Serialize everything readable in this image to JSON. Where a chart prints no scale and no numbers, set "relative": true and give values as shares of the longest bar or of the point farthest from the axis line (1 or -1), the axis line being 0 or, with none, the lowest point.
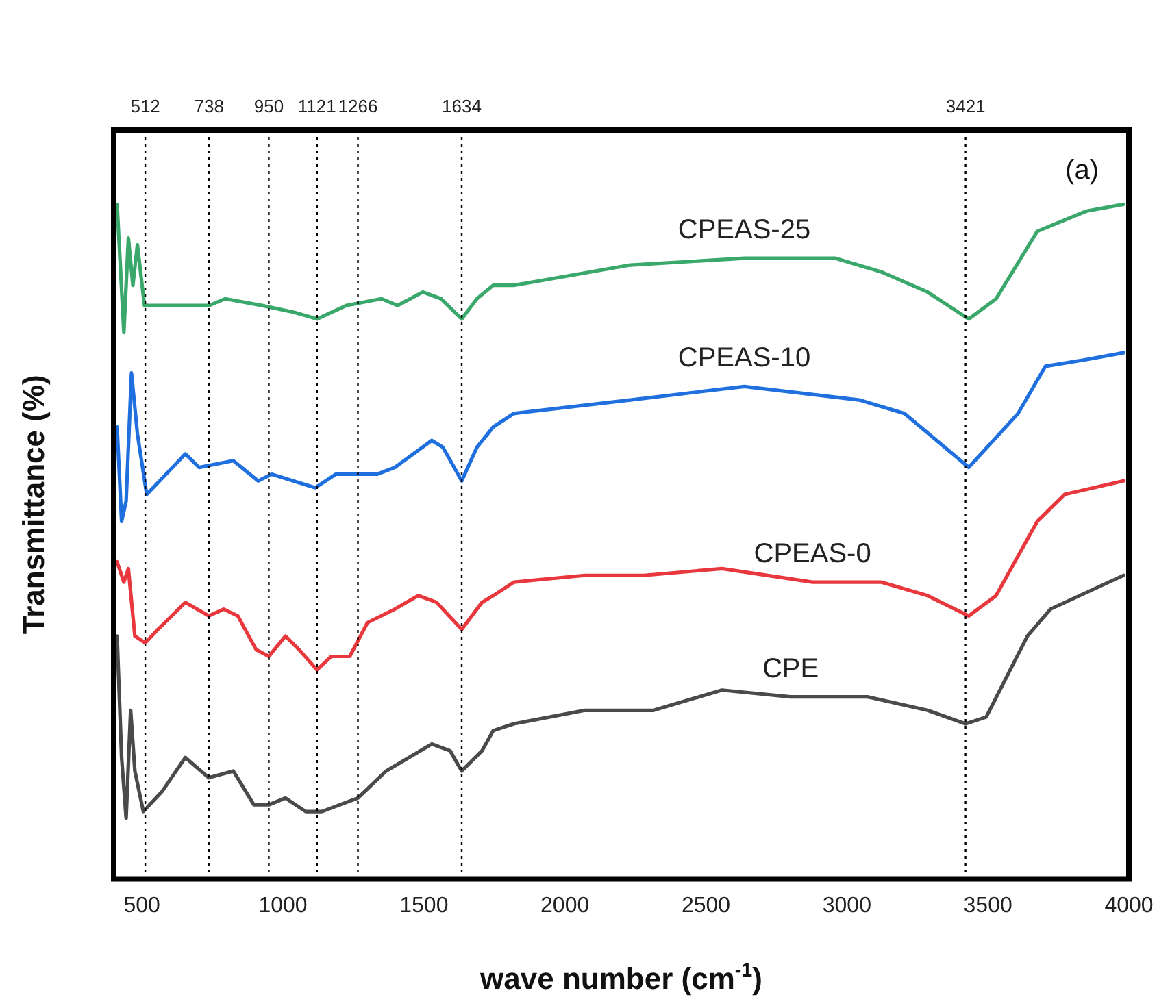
{
  "chart_data": {
    "type": "line",
    "relative": true,
    "xlabel": "wave number (cm$^{-1}$)",
    "ylabel": "Transmittance (%)",
    "xlim": [
      400,
      4000
    ],
    "xticks": [
      500,
      1000,
      1500,
      2000,
      2500,
      3000,
      3500,
      4000
    ],
    "grid": false,
    "legend": false,
    "marker": "none",
    "line_style": "solid",
    "annotations": [
      "(a)"
    ],
    "ref_lines": [
      {
        "axis": "x",
        "value": 512,
        "label": "512",
        "line_style": "dotted"
      },
      {
        "axis": "x",
        "value": 738,
        "label": "738",
        "line_style": "dotted"
      },
      {
        "axis": "x",
        "value": 950,
        "label": "950",
        "line_style": "dotted"
      },
      {
        "axis": "x",
        "value": 1121,
        "label": "1121",
        "line_style": "dotted"
      },
      {
        "axis": "x",
        "value": 1266,
        "label": "1266",
        "line_style": "dotted"
      },
      {
        "axis": "x",
        "value": 1634,
        "label": "1634",
        "line_style": "dotted"
      },
      {
        "axis": "x",
        "value": 3421,
        "label": "3421",
        "line_style": "dotted"
      }
    ],
    "series": [
      {
        "name": "CPEAS-25",
        "color": "#3aa86b",
        "x": [
          412,
          436,
          452,
          468,
          484,
          509,
          606,
          738,
          795,
          926,
          1039,
          1121,
          1225,
          1350,
          1407,
          1496,
          1561,
          1634,
          1688,
          1746,
          1819,
          2232,
          2636,
          2960,
          3121,
          3286,
          3432,
          3529,
          3675,
          3850,
          3981
        ],
        "values": [
          1.0,
          0.81,
          0.95,
          0.88,
          0.94,
          0.85,
          0.85,
          0.85,
          0.86,
          0.85,
          0.84,
          0.83,
          0.85,
          0.86,
          0.85,
          0.87,
          0.86,
          0.83,
          0.86,
          0.88,
          0.88,
          0.91,
          0.92,
          0.92,
          0.9,
          0.87,
          0.83,
          0.86,
          0.96,
          0.99,
          1.0
        ]
      },
      {
        "name": "CPEAS-10",
        "color": "#1f6fde",
        "x": [
          412,
          428,
          444,
          463,
          484,
          517,
          654,
          703,
          824,
          912,
          960,
          1115,
          1188,
          1334,
          1397,
          1528,
          1567,
          1634,
          1688,
          1746,
          1819,
          2232,
          2636,
          3044,
          3204,
          3432,
          3607,
          3704,
          3850,
          3981
        ],
        "values": [
          0.67,
          0.53,
          0.56,
          0.75,
          0.66,
          0.57,
          0.63,
          0.61,
          0.62,
          0.59,
          0.6,
          0.58,
          0.6,
          0.6,
          0.61,
          0.65,
          0.64,
          0.59,
          0.64,
          0.67,
          0.69,
          0.71,
          0.73,
          0.71,
          0.69,
          0.61,
          0.69,
          0.76,
          0.77,
          0.78
        ]
      },
      {
        "name": "CPEAS-0",
        "color": "#e8383d",
        "x": [
          412,
          436,
          452,
          475,
          512,
          557,
          654,
          737,
          790,
          840,
          905,
          950,
          1009,
          1057,
          1121,
          1172,
          1237,
          1300,
          1397,
          1480,
          1545,
          1634,
          1706,
          1746,
          1819,
          2071,
          2280,
          2557,
          2878,
          3121,
          3286,
          3432,
          3529,
          3675,
          3772,
          3981
        ],
        "values": [
          0.47,
          0.44,
          0.46,
          0.36,
          0.35,
          0.37,
          0.41,
          0.39,
          0.4,
          0.39,
          0.34,
          0.33,
          0.36,
          0.34,
          0.31,
          0.33,
          0.33,
          0.38,
          0.4,
          0.42,
          0.41,
          0.37,
          0.41,
          0.42,
          0.44,
          0.45,
          0.45,
          0.46,
          0.44,
          0.44,
          0.42,
          0.39,
          0.42,
          0.53,
          0.57,
          0.59
        ]
      },
      {
        "name": "CPE",
        "color": "#4a4a4a",
        "x": [
          412,
          428,
          444,
          460,
          475,
          505,
          572,
          654,
          737,
          824,
          897,
          950,
          1009,
          1081,
          1138,
          1266,
          1366,
          1528,
          1593,
          1634,
          1706,
          1746,
          1819,
          2071,
          2314,
          2557,
          2800,
          3073,
          3286,
          3421,
          3494,
          3640,
          3722,
          3981
        ],
        "values": [
          0.36,
          0.18,
          0.09,
          0.25,
          0.16,
          0.1,
          0.13,
          0.18,
          0.15,
          0.16,
          0.11,
          0.11,
          0.12,
          0.1,
          0.1,
          0.12,
          0.16,
          0.2,
          0.19,
          0.16,
          0.19,
          0.22,
          0.23,
          0.25,
          0.25,
          0.28,
          0.27,
          0.27,
          0.25,
          0.23,
          0.24,
          0.36,
          0.4,
          0.45
        ]
      }
    ]
  }
}
